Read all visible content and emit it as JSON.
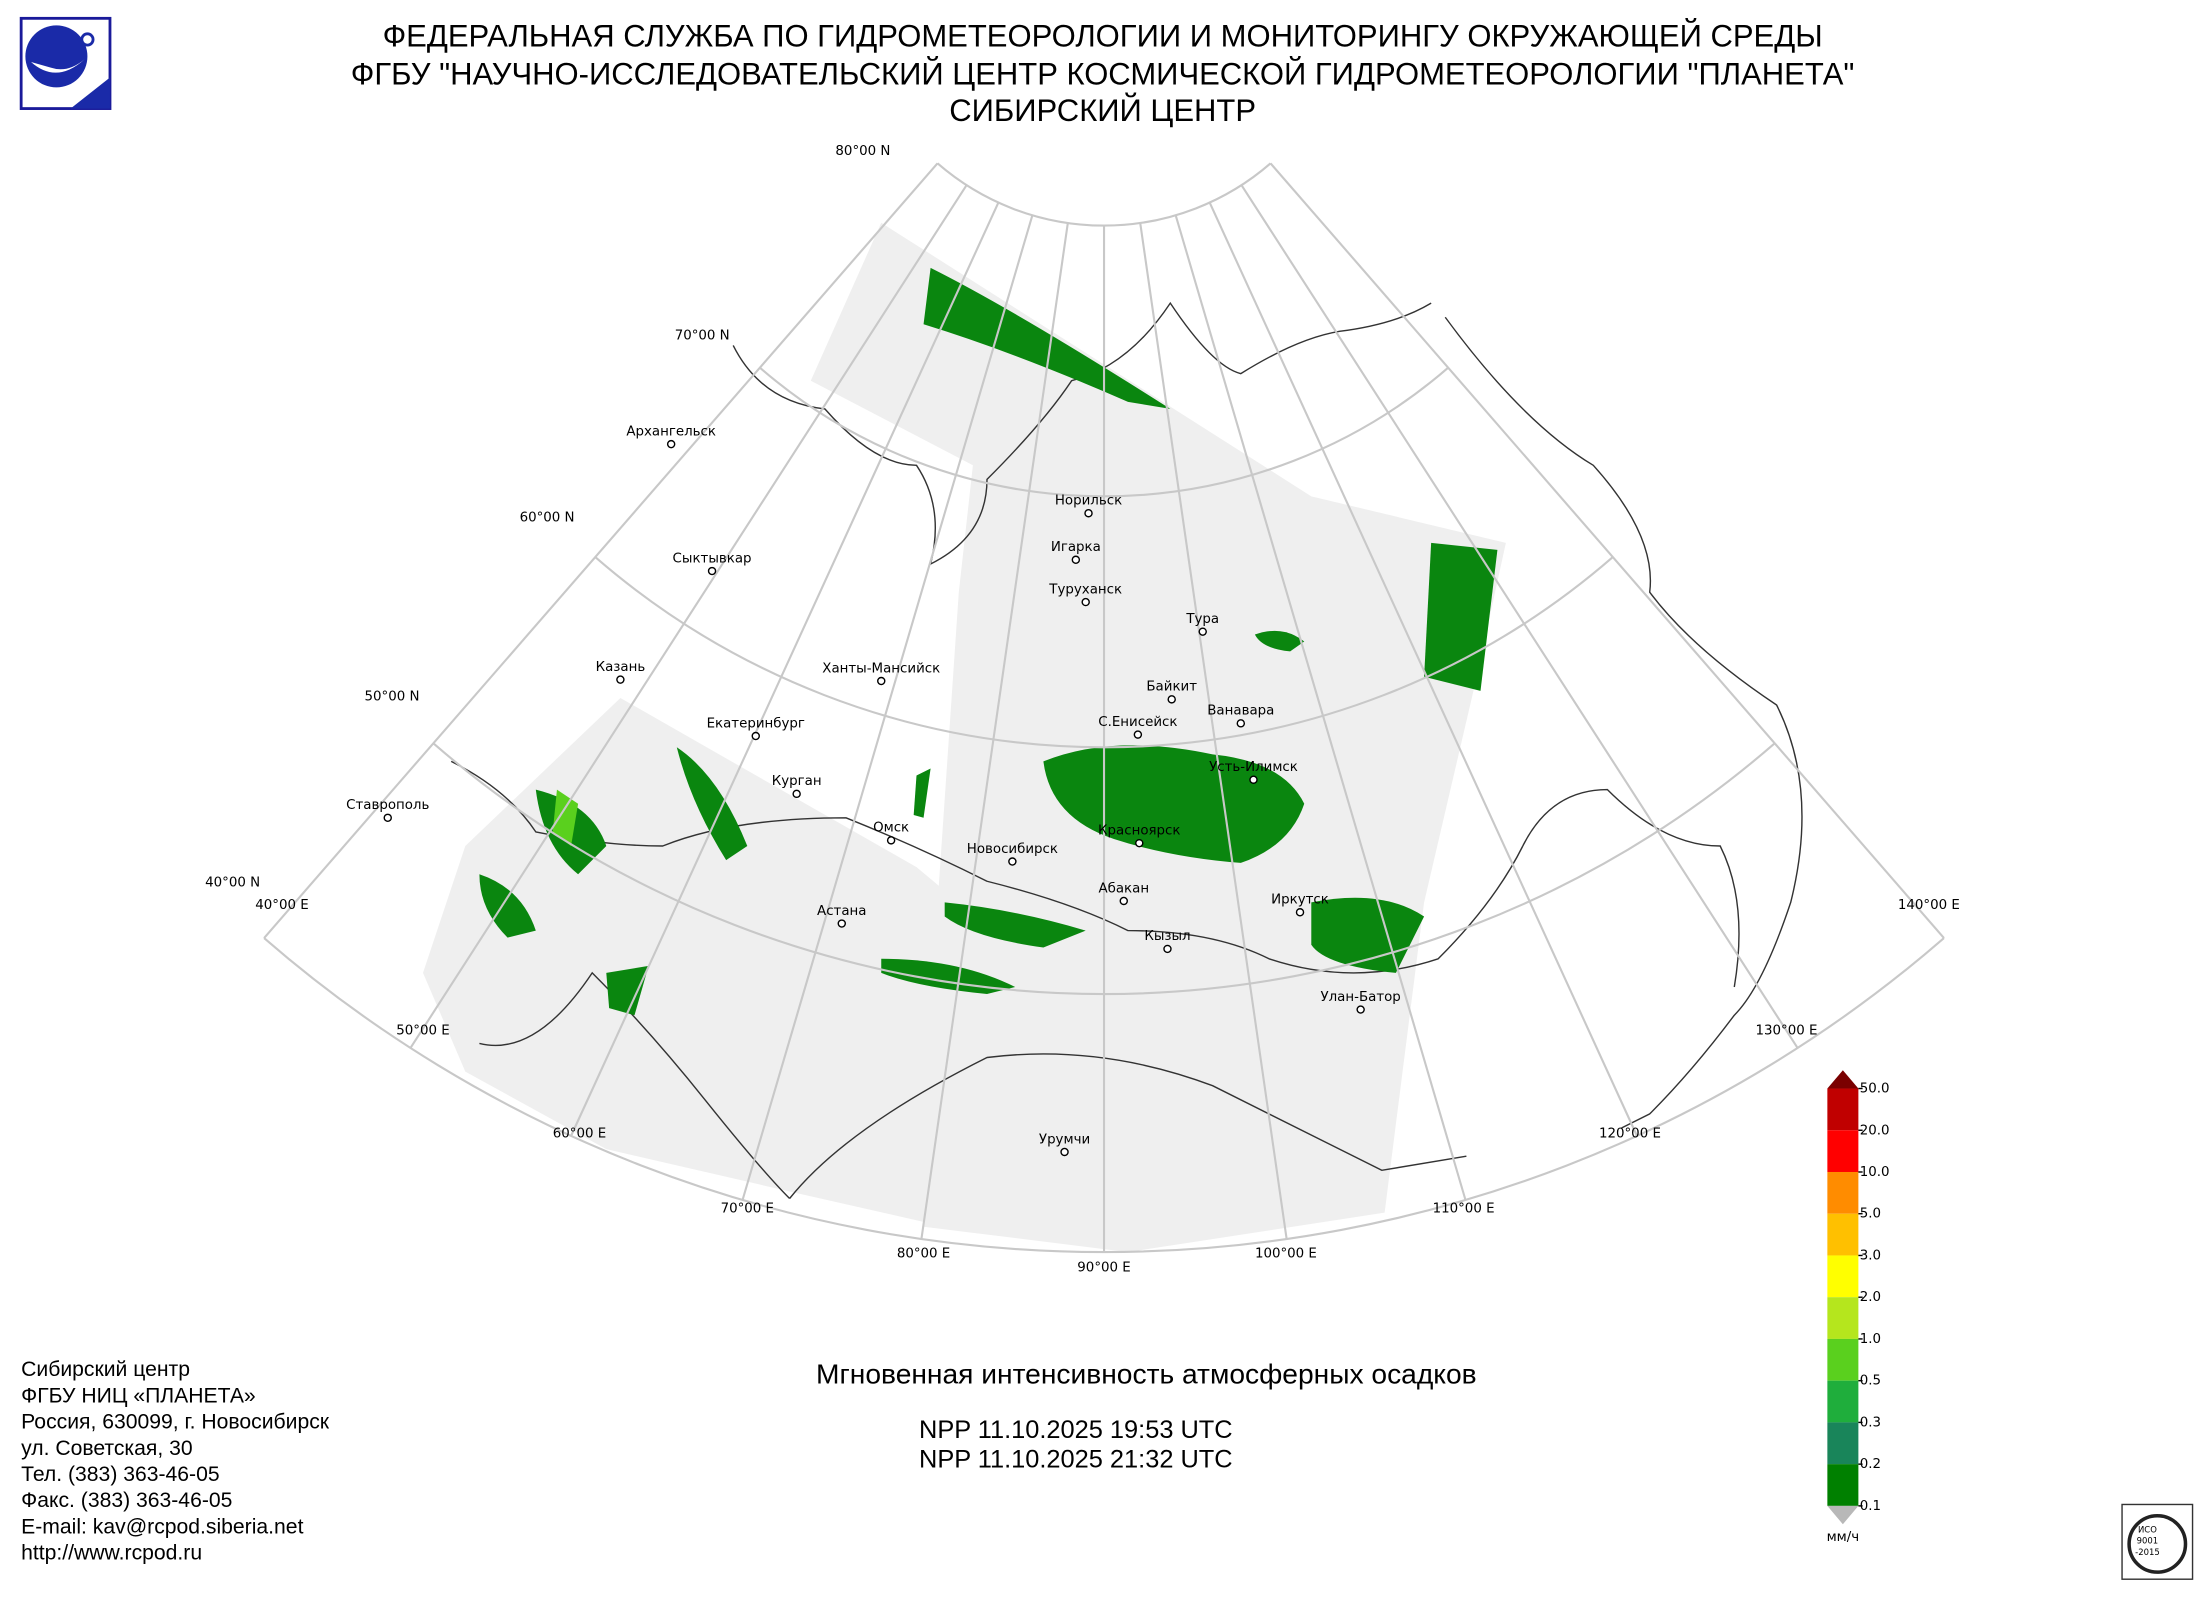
{
  "header": {
    "lines": [
      "ФЕДЕРАЛЬНАЯ СЛУЖБА ПО ГИДРОМЕТЕОРОЛОГИИ И МОНИТОРИНГУ ОКРУЖАЮЩЕЙ СРЕДЫ",
      "ФГБУ \"НАУЧНО-ИССЛЕДОВАТЕЛЬСКИЙ ЦЕНТР КОСМИЧЕСКОЙ ГИДРОМЕТЕОРОЛОГИИ \"ПЛАНЕТА\"",
      "СИБИРСКИЙ ЦЕНТР"
    ]
  },
  "grid_labels": {
    "latitudes": [
      "80°00 N",
      "70°00 N",
      "60°00 N",
      "50°00 N",
      "40°00 N"
    ],
    "longitudes": [
      "40°00 E",
      "50°00 E",
      "60°00 E",
      "70°00 E",
      "80°00 E",
      "90°00 E",
      "100°00 E",
      "110°00 E",
      "120°00 E",
      "130°00 E",
      "140°00 E"
    ]
  },
  "cities": [
    "Архангельск",
    "Сыктывкар",
    "Казань",
    "Екатеринбург",
    "Курган",
    "Ставрополь",
    "Омск",
    "Астана",
    "Ханты-Мансийск",
    "Новосибирск",
    "Норильск",
    "Игарка",
    "Туруханск",
    "Тура",
    "Байкит",
    "Ванавара",
    "С.Енисейск",
    "Усть-Илимск",
    "Красноярск",
    "Абакан",
    "Кызыл",
    "Иркутск",
    "Улан-Батор",
    "Урумчи"
  ],
  "legend": {
    "levels": [
      "50.0",
      "20.0",
      "10.0",
      "5.0",
      "3.0",
      "2.0",
      "1.0",
      "0.5",
      "0.3",
      "0.2",
      "0.1"
    ],
    "unit": "мм/ч"
  },
  "product": {
    "title": "Мгновенная интенсивность атмосферных осадков",
    "passes": [
      "NPP 11.10.2025  19:53 UTC",
      "NPP 11.10.2025  21:32 UTC"
    ]
  },
  "footer": {
    "lines": [
      "Сибирский центр",
      "ФГБУ НИЦ «ПЛАНЕТА»",
      "Россия, 630099, г. Новосибирск",
      "ул. Советская, 30",
      "Тел. (383) 363-46-05",
      "Факс. (383) 363-46-05",
      "E-mail: kav@rcpod.siberia.net",
      "http://www.rcpod.ru"
    ]
  },
  "iso_logo": {
    "lines": [
      "ИСО",
      "9001",
      "-2015"
    ]
  }
}
